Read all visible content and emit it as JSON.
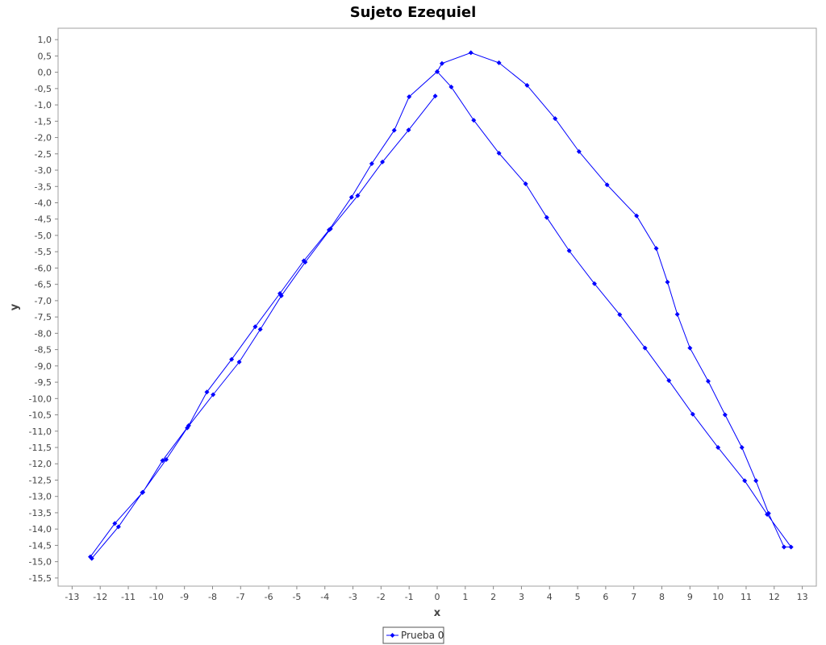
{
  "chart_data": {
    "type": "line",
    "title": "Sujeto Ezequiel",
    "xlabel": "x",
    "ylabel": "y",
    "xlim": [
      -13.5,
      13.5
    ],
    "ylim": [
      -15.75,
      1.35
    ],
    "x_ticks": [
      -13,
      -12,
      -11,
      -10,
      -9,
      -8,
      -7,
      -6,
      -5,
      -4,
      -3,
      -2,
      -1,
      0,
      1,
      2,
      3,
      4,
      5,
      6,
      7,
      8,
      9,
      10,
      11,
      12,
      13
    ],
    "x_tick_labels": [
      "-13",
      "-12",
      "-11",
      "-10",
      "-9",
      "-8",
      "-7",
      "-6",
      "-5",
      "-4",
      "-3",
      "-2",
      "-1",
      "0",
      "1",
      "2",
      "3",
      "4",
      "5",
      "6",
      "7",
      "8",
      "9",
      "10",
      "11",
      "12",
      "13"
    ],
    "y_ticks": [
      1.0,
      0.5,
      0.0,
      -0.5,
      -1.0,
      -1.5,
      -2.0,
      -2.5,
      -3.0,
      -3.5,
      -4.0,
      -4.5,
      -5.0,
      -5.5,
      -6.0,
      -6.5,
      -7.0,
      -7.5,
      -8.0,
      -8.5,
      -9.0,
      -9.5,
      -10.0,
      -10.5,
      -11.0,
      -11.5,
      -12.0,
      -12.5,
      -13.0,
      -13.5,
      -14.0,
      -14.5,
      -15.0,
      -15.5
    ],
    "y_tick_labels": [
      "1,0",
      "0,5",
      "0,0",
      "-0,5",
      "-1,0",
      "-1,5",
      "-2,0",
      "-2,5",
      "-3,0",
      "-3,5",
      "-4,0",
      "-4,5",
      "-5,0",
      "-5,5",
      "-6,0",
      "-6,5",
      "-7,0",
      "-7,5",
      "-8,0",
      "-8,5",
      "-9,0",
      "-9,5",
      "-10,0",
      "-10,5",
      "-11,0",
      "-11,5",
      "-12,0",
      "-12,5",
      "-13,0",
      "-13,5",
      "-14,0",
      "-14,5",
      "-15,0",
      "-15,5"
    ],
    "grid": false,
    "legend_position": "bottom",
    "series": [
      {
        "name": "Prueba 0",
        "color": "#0000ff",
        "marker": "diamond",
        "points": [
          [
            -0.07,
            -0.73
          ],
          [
            -1.02,
            -1.77
          ],
          [
            -1.95,
            -2.75
          ],
          [
            -2.83,
            -3.78
          ],
          [
            -3.8,
            -4.8
          ],
          [
            -4.7,
            -5.82
          ],
          [
            -5.55,
            -6.85
          ],
          [
            -6.3,
            -7.88
          ],
          [
            -7.05,
            -8.88
          ],
          [
            -7.98,
            -9.88
          ],
          [
            -8.9,
            -10.9
          ],
          [
            -9.65,
            -11.87
          ],
          [
            -10.5,
            -12.88
          ],
          [
            -11.35,
            -13.93
          ],
          [
            -12.3,
            -14.9
          ],
          [
            -12.35,
            -14.85
          ],
          [
            -11.48,
            -13.83
          ],
          [
            -10.48,
            -12.87
          ],
          [
            -9.78,
            -11.9
          ],
          [
            -8.85,
            -10.83
          ],
          [
            -8.2,
            -9.8
          ],
          [
            -7.32,
            -8.8
          ],
          [
            -6.48,
            -7.8
          ],
          [
            -5.6,
            -6.78
          ],
          [
            -4.75,
            -5.78
          ],
          [
            -3.85,
            -4.83
          ],
          [
            -3.05,
            -3.83
          ],
          [
            -2.33,
            -2.8
          ],
          [
            -1.53,
            -1.78
          ],
          [
            -1.0,
            -0.75
          ],
          [
            0.0,
            0.02
          ],
          [
            0.17,
            0.27
          ],
          [
            1.2,
            0.6
          ],
          [
            2.2,
            0.29
          ],
          [
            3.2,
            -0.4
          ],
          [
            4.2,
            -1.42
          ],
          [
            5.05,
            -2.43
          ],
          [
            6.05,
            -3.45
          ],
          [
            7.1,
            -4.4
          ],
          [
            7.8,
            -5.4
          ],
          [
            8.2,
            -6.43
          ],
          [
            8.55,
            -7.42
          ],
          [
            9.0,
            -8.45
          ],
          [
            9.65,
            -9.47
          ],
          [
            10.25,
            -10.5
          ],
          [
            10.85,
            -11.5
          ],
          [
            11.35,
            -12.52
          ],
          [
            11.8,
            -13.52
          ],
          [
            12.35,
            -14.55
          ],
          [
            12.6,
            -14.55
          ],
          [
            11.75,
            -13.55
          ],
          [
            10.95,
            -12.52
          ],
          [
            10.0,
            -11.5
          ],
          [
            9.1,
            -10.48
          ],
          [
            8.25,
            -9.45
          ],
          [
            7.4,
            -8.45
          ],
          [
            6.5,
            -7.43
          ],
          [
            5.6,
            -6.48
          ],
          [
            4.7,
            -5.47
          ],
          [
            3.9,
            -4.45
          ],
          [
            3.15,
            -3.42
          ],
          [
            2.2,
            -2.48
          ],
          [
            1.3,
            -1.47
          ],
          [
            0.5,
            -0.45
          ],
          [
            0.0,
            0.02
          ]
        ]
      }
    ]
  }
}
